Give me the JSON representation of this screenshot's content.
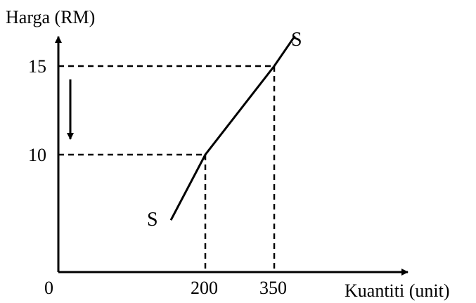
{
  "chart_data": {
    "type": "line",
    "ylabel": "Harga (RM)",
    "xlabel": "Kuantiti (unit)",
    "origin_label": "0",
    "x_ticks": [
      "200",
      "350"
    ],
    "y_ticks": [
      "15",
      "10"
    ],
    "curve_label": "S",
    "series": [
      {
        "name": "S",
        "points": [
          [
            125,
            6.3
          ],
          [
            200,
            10
          ],
          [
            350,
            15
          ],
          [
            395,
            16.7
          ]
        ]
      }
    ],
    "reference_points": [
      {
        "x": 200,
        "y": 10
      },
      {
        "x": 350,
        "y": 15
      }
    ],
    "annotation": "downward arrow: price falls from 15 to 10",
    "xlim": [
      0,
      450
    ],
    "ylim": [
      0,
      18
    ],
    "grid": false
  }
}
